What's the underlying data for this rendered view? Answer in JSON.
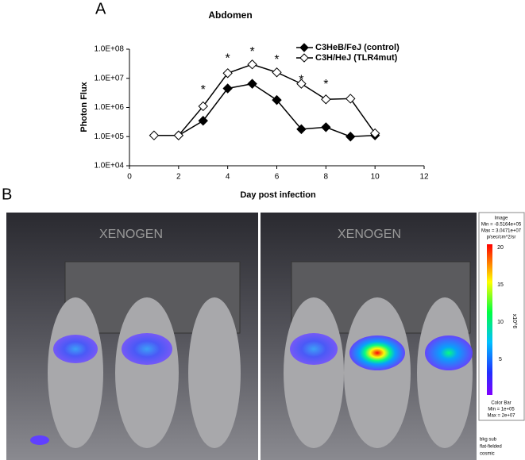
{
  "panel_a_label": "A",
  "chart_data": {
    "type": "line",
    "title": "Abdomen",
    "x_label": "Day post infection",
    "y_label": "Photon Flux",
    "x": [
      1,
      2,
      3,
      4,
      5,
      6,
      7,
      8,
      9,
      10
    ],
    "series": [
      {
        "name": "C3HeB/FeJ (control)",
        "color": "#000000",
        "values": [
          null,
          110000,
          350000,
          4500000,
          6500000,
          1800000,
          180000,
          210000,
          100000,
          110000
        ]
      },
      {
        "name": "C3H/HeJ (TLR4mut)",
        "color": "#ffffff",
        "values": [
          110000,
          110000,
          1100000,
          15000000,
          30000000,
          16000000,
          6500000,
          1900000,
          2000000,
          130000
        ]
      }
    ],
    "xlim": [
      0,
      12
    ],
    "xticks": [
      0,
      2,
      4,
      6,
      8,
      10,
      12
    ],
    "ylim": [
      10000,
      100000000
    ],
    "log_y": true,
    "yticks": [
      {
        "value": 10000,
        "label": "1.0E+04"
      },
      {
        "value": 100000,
        "label": "1.0E+05"
      },
      {
        "value": 1000000,
        "label": "1.0E+06"
      },
      {
        "value": 10000000,
        "label": "1.0E+07"
      },
      {
        "value": 100000000,
        "label": "1.0E+08"
      }
    ],
    "legend": "top-right",
    "annotations": [
      {
        "text": "*",
        "x": 3,
        "y": 5000000
      },
      {
        "text": "*",
        "x": 4,
        "y": 60000000
      },
      {
        "text": "*",
        "x": 5,
        "y": 100000000
      },
      {
        "text": "*",
        "x": 6,
        "y": 55000000
      },
      {
        "text": "*",
        "x": 7,
        "y": 11000000
      },
      {
        "text": "*",
        "x": 8,
        "y": 7700000
      }
    ]
  },
  "panel_b": {
    "label": "B",
    "watermark": "XENOGEN",
    "image_header": [
      "Image",
      "Min = -8.5164e+05",
      "Max = 3.0471e+07",
      "p/sec/cm^2/sr"
    ],
    "colorbar_ticks": [
      "20",
      "15",
      "10",
      "5"
    ],
    "colorbar_unit": "x10^6",
    "colorbar_footer": [
      "Color Bar",
      "Min = 1e+05",
      "Max = 2e+07"
    ],
    "notes": [
      "bkg sub",
      "flat-fielded",
      "cosmic"
    ]
  }
}
